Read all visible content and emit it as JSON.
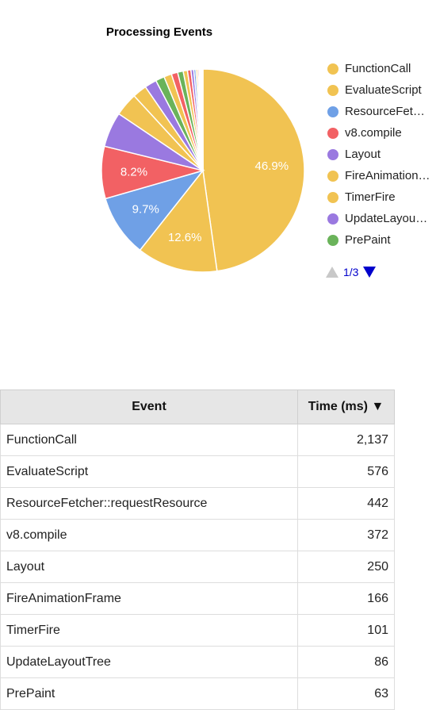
{
  "chart_data": {
    "type": "pie",
    "title": "Processing Events",
    "slices": [
      {
        "label": "FunctionCall",
        "value": 2137,
        "color": "#f1c352",
        "pct_label": "46.9%"
      },
      {
        "label": "EvaluateScript",
        "value": 576,
        "color": "#f1c352",
        "pct_label": "12.6%"
      },
      {
        "label": "ResourceFetcher::requestResource",
        "value": 442,
        "color": "#6fa0e6",
        "pct_label": "9.7%"
      },
      {
        "label": "v8.compile",
        "value": 372,
        "color": "#f26164",
        "pct_label": "8.2%"
      },
      {
        "label": "Layout",
        "value": 250,
        "color": "#9a79e0",
        "pct_label": ""
      },
      {
        "label": "FireAnimationFrame",
        "value": 166,
        "color": "#f1c352",
        "pct_label": ""
      },
      {
        "label": "TimerFire",
        "value": 101,
        "color": "#f1c352",
        "pct_label": ""
      },
      {
        "label": "UpdateLayoutTree",
        "value": 86,
        "color": "#9a79e0",
        "pct_label": ""
      },
      {
        "label": "PrePaint",
        "value": 63,
        "color": "#6ab35a",
        "pct_label": ""
      },
      {
        "label": "",
        "value": 55,
        "color": "#f1c352",
        "pct_label": ""
      },
      {
        "label": "",
        "value": 45,
        "color": "#f26164",
        "pct_label": ""
      },
      {
        "label": "",
        "value": 40,
        "color": "#6ab35a",
        "pct_label": ""
      },
      {
        "label": "",
        "value": 30,
        "color": "#f1c352",
        "pct_label": ""
      },
      {
        "label": "",
        "value": 25,
        "color": "#f26164",
        "pct_label": ""
      },
      {
        "label": "",
        "value": 20,
        "color": "#9a79e0",
        "pct_label": ""
      },
      {
        "label": "",
        "value": 15,
        "color": "#6fa0e6",
        "pct_label": ""
      },
      {
        "label": "",
        "value": 12,
        "color": "#f1c352",
        "pct_label": ""
      },
      {
        "label": "",
        "value": 10,
        "color": "#f26164",
        "pct_label": ""
      },
      {
        "label": "",
        "value": 8,
        "color": "#6fa0e6",
        "pct_label": ""
      },
      {
        "label": "",
        "value": 6,
        "color": "#f1c352",
        "pct_label": ""
      },
      {
        "label": "",
        "value": 5,
        "color": "#9a79e0",
        "pct_label": ""
      },
      {
        "label": "",
        "value": 4,
        "color": "#f26164",
        "pct_label": ""
      },
      {
        "label": "",
        "value": 3,
        "color": "#6ab35a",
        "pct_label": ""
      },
      {
        "label": "",
        "value": 2,
        "color": "#f1c352",
        "pct_label": ""
      }
    ],
    "legend_placement": "right"
  },
  "legend": {
    "items": [
      {
        "label": "FunctionCall",
        "color": "#f1c352"
      },
      {
        "label": "EvaluateScript",
        "color": "#f1c352"
      },
      {
        "label": "ResourceFetcher::requestResource",
        "color": "#6fa0e6"
      },
      {
        "label": "v8.compile",
        "color": "#f26164"
      },
      {
        "label": "Layout",
        "color": "#9a79e0"
      },
      {
        "label": "FireAnimationFrame",
        "color": "#f1c352"
      },
      {
        "label": "TimerFire",
        "color": "#f1c352"
      },
      {
        "label": "UpdateLayoutTree",
        "color": "#9a79e0"
      },
      {
        "label": "PrePaint",
        "color": "#6ab35a"
      }
    ],
    "pager": {
      "text": "1/3",
      "prev_icon": "triangle-up-icon",
      "next_icon": "triangle-down-icon"
    }
  },
  "table": {
    "headers": {
      "event": "Event",
      "time": "Time (ms) ▼"
    },
    "rows": [
      {
        "event": "FunctionCall",
        "time": "2,137"
      },
      {
        "event": "EvaluateScript",
        "time": "576"
      },
      {
        "event": "ResourceFetcher::requestResource",
        "time": "442"
      },
      {
        "event": "v8.compile",
        "time": "372"
      },
      {
        "event": "Layout",
        "time": "250"
      },
      {
        "event": "FireAnimationFrame",
        "time": "166"
      },
      {
        "event": "TimerFire",
        "time": "101"
      },
      {
        "event": "UpdateLayoutTree",
        "time": "86"
      },
      {
        "event": "PrePaint",
        "time": "63"
      }
    ]
  }
}
